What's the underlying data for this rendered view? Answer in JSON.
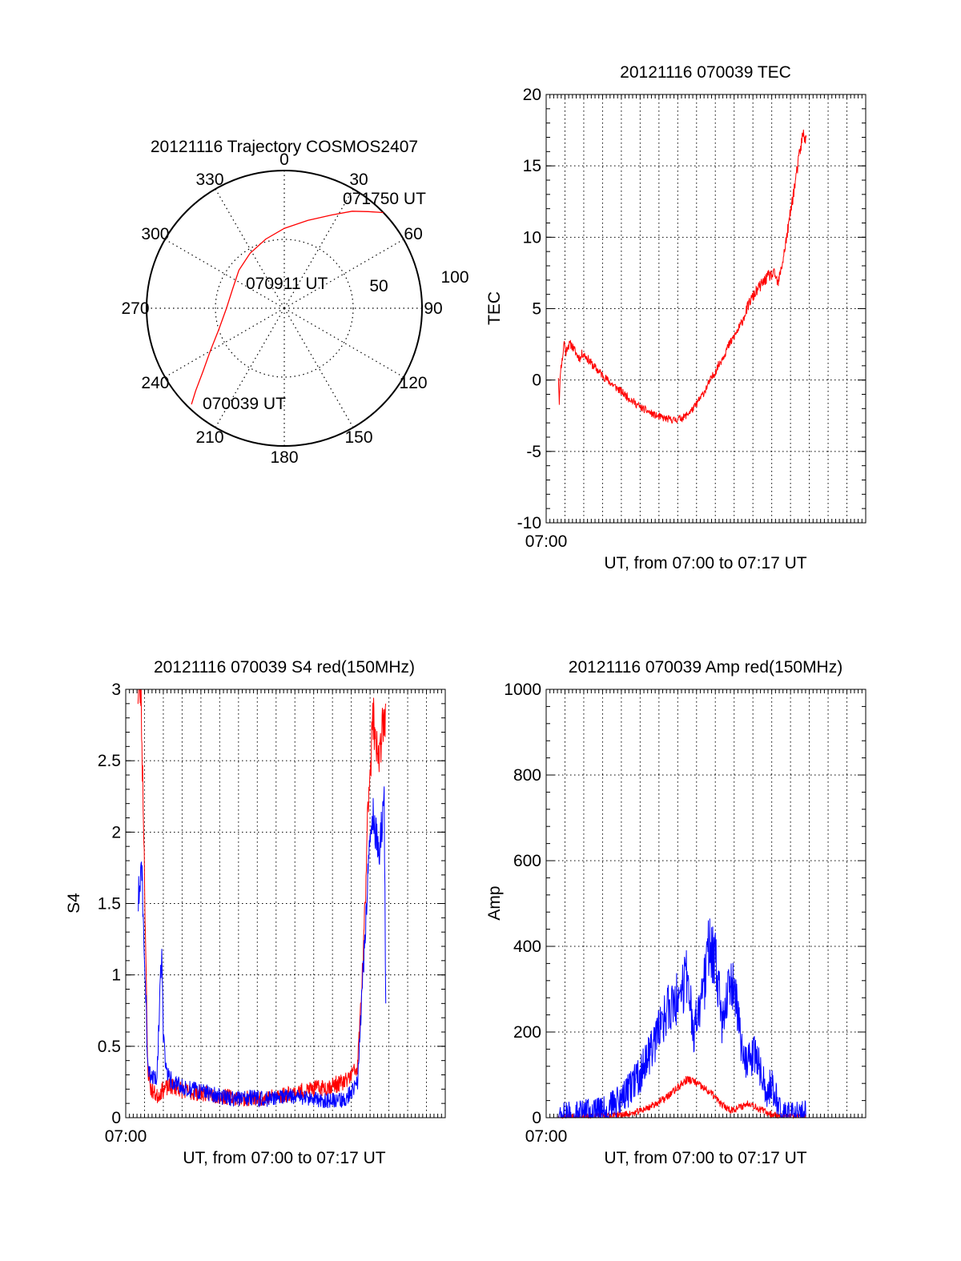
{
  "colors": {
    "red_series": "#ff0000",
    "blue_series": "#0000ff",
    "axis": "#000000",
    "grid": "#000000",
    "background": "#ffffff"
  },
  "chart_data": [
    {
      "id": "trajectory",
      "type": "polar",
      "title": "20121116 Trajectory COSMOS2407",
      "azimuth_labels": [
        {
          "az": 0,
          "label": "0"
        },
        {
          "az": 30,
          "label": "30"
        },
        {
          "az": 60,
          "label": "60"
        },
        {
          "az": 90,
          "label": "90"
        },
        {
          "az": 120,
          "label": "120"
        },
        {
          "az": 150,
          "label": "150"
        },
        {
          "az": 180,
          "label": "180"
        },
        {
          "az": 210,
          "label": "210"
        },
        {
          "az": 240,
          "label": "240"
        },
        {
          "az": 270,
          "label": "270"
        },
        {
          "az": 300,
          "label": "300"
        },
        {
          "az": 330,
          "label": "330"
        }
      ],
      "rings": [
        {
          "elevation": 50,
          "label": "50"
        },
        {
          "elevation": 100,
          "label": "100"
        }
      ],
      "annotations": [
        {
          "text": "071750 UT",
          "point": "end"
        },
        {
          "text": "070911 UT",
          "point": "mid"
        },
        {
          "text": "070039 UT",
          "point": "start"
        }
      ],
      "series": [
        {
          "color": "red",
          "points": [
            {
              "az": 224,
              "r": 0.97
            },
            {
              "az": 227,
              "r": 0.88
            },
            {
              "az": 232,
              "r": 0.75
            },
            {
              "az": 240,
              "r": 0.62
            },
            {
              "az": 252,
              "r": 0.5
            },
            {
              "az": 270,
              "r": 0.42
            },
            {
              "az": 290,
              "r": 0.4
            },
            {
              "az": 310,
              "r": 0.43
            },
            {
              "az": 328,
              "r": 0.47
            },
            {
              "az": 345,
              "r": 0.52
            },
            {
              "az": 0,
              "r": 0.58
            },
            {
              "az": 15,
              "r": 0.66
            },
            {
              "az": 27,
              "r": 0.76
            },
            {
              "az": 35,
              "r": 0.86
            },
            {
              "az": 41,
              "r": 0.93
            },
            {
              "az": 46,
              "r": 1.0
            }
          ]
        }
      ]
    },
    {
      "id": "tec",
      "type": "line",
      "title": "20121116 070039 TEC",
      "xlabel": "UT, from 07:00 to 07:17 UT",
      "ylabel": "TEC",
      "x_tick_label": "07:00",
      "xlim": [
        0,
        1020
      ],
      "ylim": [
        -10,
        20
      ],
      "yticks": [
        -10,
        -5,
        0,
        5,
        10,
        15,
        20
      ],
      "grid": true,
      "series": [
        {
          "color": "red",
          "noise": 0.15,
          "points": [
            [
              39,
              0.3
            ],
            [
              42,
              -1.5
            ],
            [
              46,
              0.8
            ],
            [
              52,
              1.5
            ],
            [
              58,
              2.8
            ],
            [
              62,
              1.8
            ],
            [
              68,
              2.4
            ],
            [
              80,
              2.5
            ],
            [
              90,
              2.1
            ],
            [
              100,
              1.7
            ],
            [
              110,
              1.5
            ],
            [
              115,
              1.9
            ],
            [
              125,
              1.7
            ],
            [
              150,
              1.0
            ],
            [
              200,
              -0.1
            ],
            [
              250,
              -1.0
            ],
            [
              300,
              -1.9
            ],
            [
              350,
              -2.5
            ],
            [
              380,
              -2.7
            ],
            [
              410,
              -2.8
            ],
            [
              440,
              -2.6
            ],
            [
              470,
              -2.0
            ],
            [
              500,
              -1.0
            ],
            [
              540,
              0.6
            ],
            [
              580,
              2.3
            ],
            [
              620,
              3.8
            ],
            [
              650,
              5.5
            ],
            [
              680,
              6.5
            ],
            [
              710,
              7.3
            ],
            [
              730,
              7.4
            ],
            [
              740,
              6.7
            ],
            [
              755,
              8.3
            ],
            [
              770,
              10.3
            ],
            [
              785,
              12.5
            ],
            [
              800,
              14.5
            ],
            [
              810,
              16.0
            ],
            [
              820,
              17.2
            ],
            [
              830,
              17.0
            ]
          ]
        }
      ]
    },
    {
      "id": "s4",
      "type": "line",
      "title": "20121116 070039 S4 red(150MHz)",
      "xlabel": "UT, from 07:00 to 07:17 UT",
      "ylabel": "S4",
      "x_tick_label": "07:00",
      "xlim": [
        0,
        1020
      ],
      "ylim": [
        0,
        3
      ],
      "yticks": [
        0,
        0.5,
        1,
        1.5,
        2,
        2.5,
        3
      ],
      "ytick_labels": [
        "0",
        "0.5",
        "1",
        "1.5",
        "2",
        "2.5",
        "3"
      ],
      "grid": true,
      "series": [
        {
          "color": "red",
          "noise": 0.05,
          "points": [
            [
              39,
              3.0
            ],
            [
              48,
              3.0
            ],
            [
              58,
              2.0
            ],
            [
              65,
              1.0
            ],
            [
              70,
              0.35
            ],
            [
              80,
              0.2
            ],
            [
              100,
              0.15
            ],
            [
              120,
              0.2
            ],
            [
              150,
              0.22
            ],
            [
              200,
              0.18
            ],
            [
              250,
              0.17
            ],
            [
              300,
              0.15
            ],
            [
              350,
              0.14
            ],
            [
              400,
              0.13
            ],
            [
              450,
              0.14
            ],
            [
              500,
              0.16
            ],
            [
              550,
              0.18
            ],
            [
              600,
              0.2
            ],
            [
              650,
              0.22
            ],
            [
              700,
              0.25
            ],
            [
              740,
              0.35
            ],
            [
              760,
              1.2
            ],
            [
              775,
              2.3
            ],
            [
              790,
              2.8
            ],
            [
              810,
              2.5
            ],
            [
              830,
              2.9
            ]
          ]
        },
        {
          "color": "blue",
          "noise": 0.05,
          "points": [
            [
              39,
              1.5
            ],
            [
              50,
              1.8
            ],
            [
              58,
              1.3
            ],
            [
              65,
              0.8
            ],
            [
              70,
              0.35
            ],
            [
              80,
              0.28
            ],
            [
              100,
              0.3
            ],
            [
              115,
              1.2
            ],
            [
              120,
              0.6
            ],
            [
              130,
              0.3
            ],
            [
              150,
              0.25
            ],
            [
              200,
              0.2
            ],
            [
              250,
              0.18
            ],
            [
              300,
              0.15
            ],
            [
              350,
              0.13
            ],
            [
              400,
              0.14
            ],
            [
              450,
              0.13
            ],
            [
              500,
              0.15
            ],
            [
              550,
              0.14
            ],
            [
              600,
              0.13
            ],
            [
              650,
              0.12
            ],
            [
              700,
              0.12
            ],
            [
              740,
              0.25
            ],
            [
              760,
              1.1
            ],
            [
              775,
              1.8
            ],
            [
              790,
              2.1
            ],
            [
              810,
              1.9
            ],
            [
              825,
              2.2
            ],
            [
              830,
              0.8
            ]
          ]
        }
      ]
    },
    {
      "id": "amp",
      "type": "line",
      "title": "20121116 070039 Amp red(150MHz)",
      "xlabel": "UT, from 07:00 to 07:17 UT",
      "ylabel": "Amp",
      "x_tick_label": "07:00",
      "xlim": [
        0,
        1020
      ],
      "ylim": [
        0,
        1000
      ],
      "yticks": [
        0,
        200,
        400,
        600,
        800,
        1000
      ],
      "grid": true,
      "series": [
        {
          "color": "red",
          "noise": 8,
          "points": [
            [
              39,
              1
            ],
            [
              100,
              2
            ],
            [
              200,
              4
            ],
            [
              280,
              10
            ],
            [
              330,
              25
            ],
            [
              380,
              45
            ],
            [
              420,
              70
            ],
            [
              450,
              90
            ],
            [
              470,
              85
            ],
            [
              500,
              70
            ],
            [
              530,
              55
            ],
            [
              560,
              30
            ],
            [
              590,
              18
            ],
            [
              620,
              25
            ],
            [
              650,
              35
            ],
            [
              680,
              20
            ],
            [
              720,
              8
            ],
            [
              760,
              2
            ],
            [
              830,
              1
            ]
          ]
        },
        {
          "color": "blue",
          "noise": 35,
          "points": [
            [
              39,
              2
            ],
            [
              100,
              5
            ],
            [
              150,
              10
            ],
            [
              200,
              20
            ],
            [
              250,
              50
            ],
            [
              300,
              100
            ],
            [
              350,
              180
            ],
            [
              380,
              240
            ],
            [
              420,
              280
            ],
            [
              450,
              330
            ],
            [
              470,
              200
            ],
            [
              500,
              280
            ],
            [
              520,
              400
            ],
            [
              540,
              380
            ],
            [
              560,
              230
            ],
            [
              580,
              280
            ],
            [
              600,
              310
            ],
            [
              620,
              180
            ],
            [
              640,
              120
            ],
            [
              660,
              150
            ],
            [
              680,
              120
            ],
            [
              700,
              60
            ],
            [
              720,
              80
            ],
            [
              740,
              40
            ],
            [
              750,
              5
            ],
            [
              790,
              2
            ],
            [
              830,
              5
            ]
          ]
        }
      ]
    }
  ]
}
